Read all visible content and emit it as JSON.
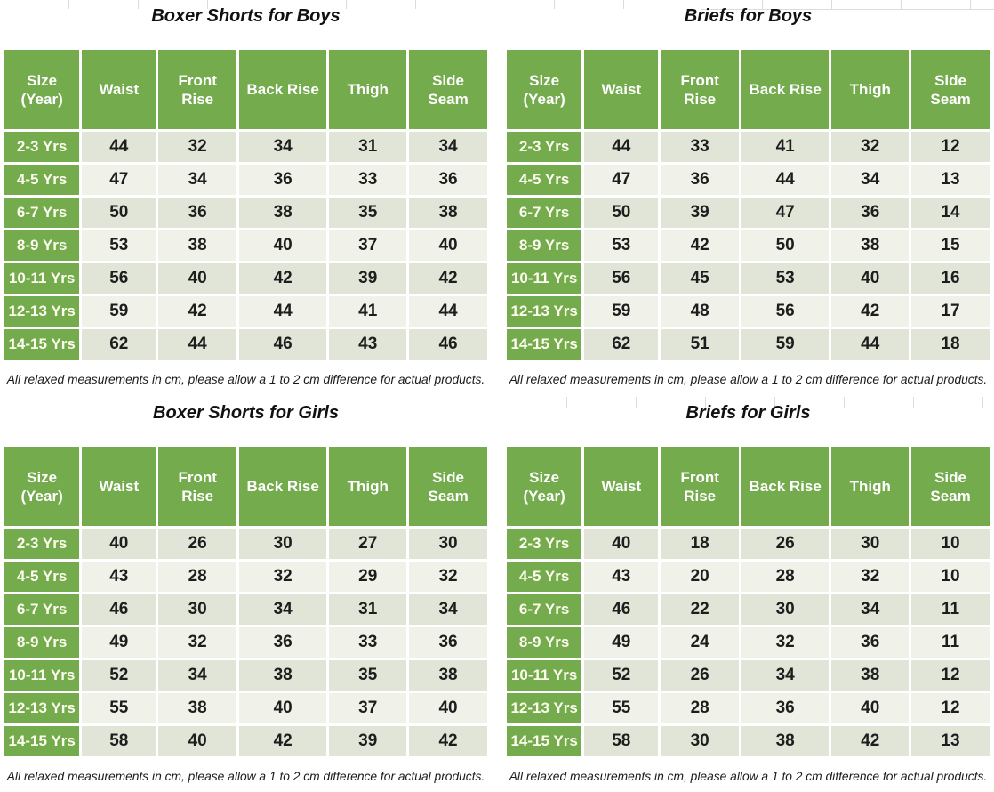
{
  "colors": {
    "table-green": "#74ab4d",
    "row-shade-dark": "#e0e5d7",
    "row-shade-light": "#f0f2e9",
    "cell-border": "#ffffff",
    "header-text": "#ffffff",
    "label-text": "#fdfcee",
    "value-text": "#1d1d1d",
    "title-text": "#111111",
    "gridline": "#dcdcdc"
  },
  "columns": [
    "Size (Year)",
    "Waist",
    "Front Rise",
    "Back Rise",
    "Thigh",
    "Side Seam"
  ],
  "footnote": "All relaxed measurements in cm, please allow a 1 to 2 cm difference for actual products.",
  "tables": [
    {
      "title": "Boxer Shorts for Boys",
      "rows": [
        {
          "size": "2-3 Yrs",
          "values": [
            44,
            32,
            34,
            31,
            34
          ]
        },
        {
          "size": "4-5 Yrs",
          "values": [
            47,
            34,
            36,
            33,
            36
          ]
        },
        {
          "size": "6-7 Yrs",
          "values": [
            50,
            36,
            38,
            35,
            38
          ]
        },
        {
          "size": "8-9 Yrs",
          "values": [
            53,
            38,
            40,
            37,
            40
          ]
        },
        {
          "size": "10-11 Yrs",
          "values": [
            56,
            40,
            42,
            39,
            42
          ]
        },
        {
          "size": "12-13 Yrs",
          "values": [
            59,
            42,
            44,
            41,
            44
          ]
        },
        {
          "size": "14-15 Yrs",
          "values": [
            62,
            44,
            46,
            43,
            46
          ]
        }
      ]
    },
    {
      "title": "Briefs for Boys",
      "rows": [
        {
          "size": "2-3 Yrs",
          "values": [
            44,
            33,
            41,
            32,
            12
          ]
        },
        {
          "size": "4-5 Yrs",
          "values": [
            47,
            36,
            44,
            34,
            13
          ]
        },
        {
          "size": "6-7 Yrs",
          "values": [
            50,
            39,
            47,
            36,
            14
          ]
        },
        {
          "size": "8-9 Yrs",
          "values": [
            53,
            42,
            50,
            38,
            15
          ]
        },
        {
          "size": "10-11 Yrs",
          "values": [
            56,
            45,
            53,
            40,
            16
          ]
        },
        {
          "size": "12-13 Yrs",
          "values": [
            59,
            48,
            56,
            42,
            17
          ]
        },
        {
          "size": "14-15 Yrs",
          "values": [
            62,
            51,
            59,
            44,
            18
          ]
        }
      ]
    },
    {
      "title": "Boxer Shorts for Girls",
      "rows": [
        {
          "size": "2-3 Yrs",
          "values": [
            40,
            26,
            30,
            27,
            30
          ]
        },
        {
          "size": "4-5 Yrs",
          "values": [
            43,
            28,
            32,
            29,
            32
          ]
        },
        {
          "size": "6-7 Yrs",
          "values": [
            46,
            30,
            34,
            31,
            34
          ]
        },
        {
          "size": "8-9 Yrs",
          "values": [
            49,
            32,
            36,
            33,
            36
          ]
        },
        {
          "size": "10-11 Yrs",
          "values": [
            52,
            34,
            38,
            35,
            38
          ]
        },
        {
          "size": "12-13 Yrs",
          "values": [
            55,
            38,
            40,
            37,
            40
          ]
        },
        {
          "size": "14-15 Yrs",
          "values": [
            58,
            40,
            42,
            39,
            42
          ]
        }
      ]
    },
    {
      "title": "Briefs for Girls",
      "rows": [
        {
          "size": "2-3 Yrs",
          "values": [
            40,
            18,
            26,
            30,
            10
          ]
        },
        {
          "size": "4-5 Yrs",
          "values": [
            43,
            20,
            28,
            32,
            10
          ]
        },
        {
          "size": "6-7 Yrs",
          "values": [
            46,
            22,
            30,
            34,
            11
          ]
        },
        {
          "size": "8-9 Yrs",
          "values": [
            49,
            24,
            32,
            36,
            11
          ]
        },
        {
          "size": "10-11 Yrs",
          "values": [
            52,
            26,
            34,
            38,
            12
          ]
        },
        {
          "size": "12-13 Yrs",
          "values": [
            55,
            28,
            36,
            40,
            12
          ]
        },
        {
          "size": "14-15 Yrs",
          "values": [
            58,
            30,
            38,
            42,
            13
          ]
        }
      ]
    }
  ]
}
